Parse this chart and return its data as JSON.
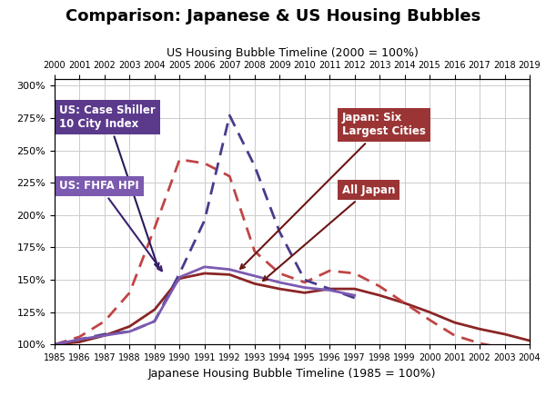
{
  "title": "Comparison: Japanese & US Housing Bubbles",
  "top_xlabel": "US Housing Bubble Timeline (2000 = 100%)",
  "bottom_xlabel": "Japanese Housing Bubble Timeline (1985 = 100%)",
  "ylim": [
    1.0,
    3.05
  ],
  "yticks": [
    1.0,
    1.25,
    1.5,
    1.75,
    2.0,
    2.25,
    2.5,
    2.75,
    3.0
  ],
  "ytick_labels": [
    "100%",
    "125%",
    "150%",
    "175%",
    "200%",
    "225%",
    "250%",
    "275%",
    "300%"
  ],
  "japan_x": [
    1985,
    1986,
    1987,
    1988,
    1989,
    1990,
    1991,
    1992,
    1993,
    1994,
    1995,
    1996,
    1997,
    1998,
    1999,
    2000,
    2001,
    2002,
    2003,
    2004
  ],
  "japan_bottom_ticks": [
    1985,
    1986,
    1987,
    1988,
    1989,
    1990,
    1991,
    1992,
    1993,
    1994,
    1995,
    1996,
    1997,
    1998,
    1999,
    2000,
    2001,
    2002,
    2003,
    2004
  ],
  "us_top_ticks": [
    2000,
    2001,
    2002,
    2003,
    2004,
    2005,
    2006,
    2007,
    2008,
    2009,
    2010,
    2011,
    2012,
    2013,
    2014,
    2015,
    2016,
    2017,
    2018,
    2019
  ],
  "all_japan_y": [
    1.0,
    1.02,
    1.07,
    1.14,
    1.27,
    1.51,
    1.55,
    1.54,
    1.47,
    1.43,
    1.4,
    1.43,
    1.43,
    1.38,
    1.32,
    1.25,
    1.17,
    1.12,
    1.08,
    1.03
  ],
  "japan_six_y": [
    1.0,
    1.06,
    1.18,
    1.4,
    1.9,
    2.43,
    2.4,
    2.3,
    1.72,
    1.55,
    1.48,
    1.57,
    1.55,
    1.45,
    1.32,
    1.19,
    1.07,
    1.01,
    0.97,
    0.93
  ],
  "cs10_x_japan": [
    1985,
    1986,
    1987,
    1988,
    1989,
    1990,
    1991,
    1992,
    1993,
    1994,
    1995,
    1996,
    1997
  ],
  "cs10_y": [
    1.0,
    1.04,
    1.08,
    1.1,
    1.18,
    1.55,
    1.96,
    2.77,
    2.38,
    1.87,
    1.5,
    1.43,
    1.36
  ],
  "fhfa_x_japan": [
    1985,
    1986,
    1987,
    1988,
    1989,
    1990,
    1991,
    1992,
    1993,
    1994,
    1995,
    1996,
    1997
  ],
  "fhfa_y": [
    1.0,
    1.04,
    1.07,
    1.1,
    1.18,
    1.52,
    1.6,
    1.58,
    1.53,
    1.48,
    1.44,
    1.42,
    1.38
  ],
  "all_japan_color": "#8B2525",
  "japan_six_color": "#C04545",
  "cs10_color": "#4A3A8C",
  "fhfa_color": "#7B5AB0",
  "box_cs10_color": "#5B3A8C",
  "box_fhfa_color": "#7B5AB0",
  "box_japan_six_color": "#9B3535",
  "box_all_japan_color": "#9B3535",
  "label_cs10": "US: Case Shiller\n10 City Index",
  "label_fhfa": "US: FHFA HPI",
  "label_japan_six": "Japan: Six\nLargest Cities",
  "label_all_japan": "All Japan",
  "background_color": "#ffffff",
  "grid_color": "#cccccc"
}
